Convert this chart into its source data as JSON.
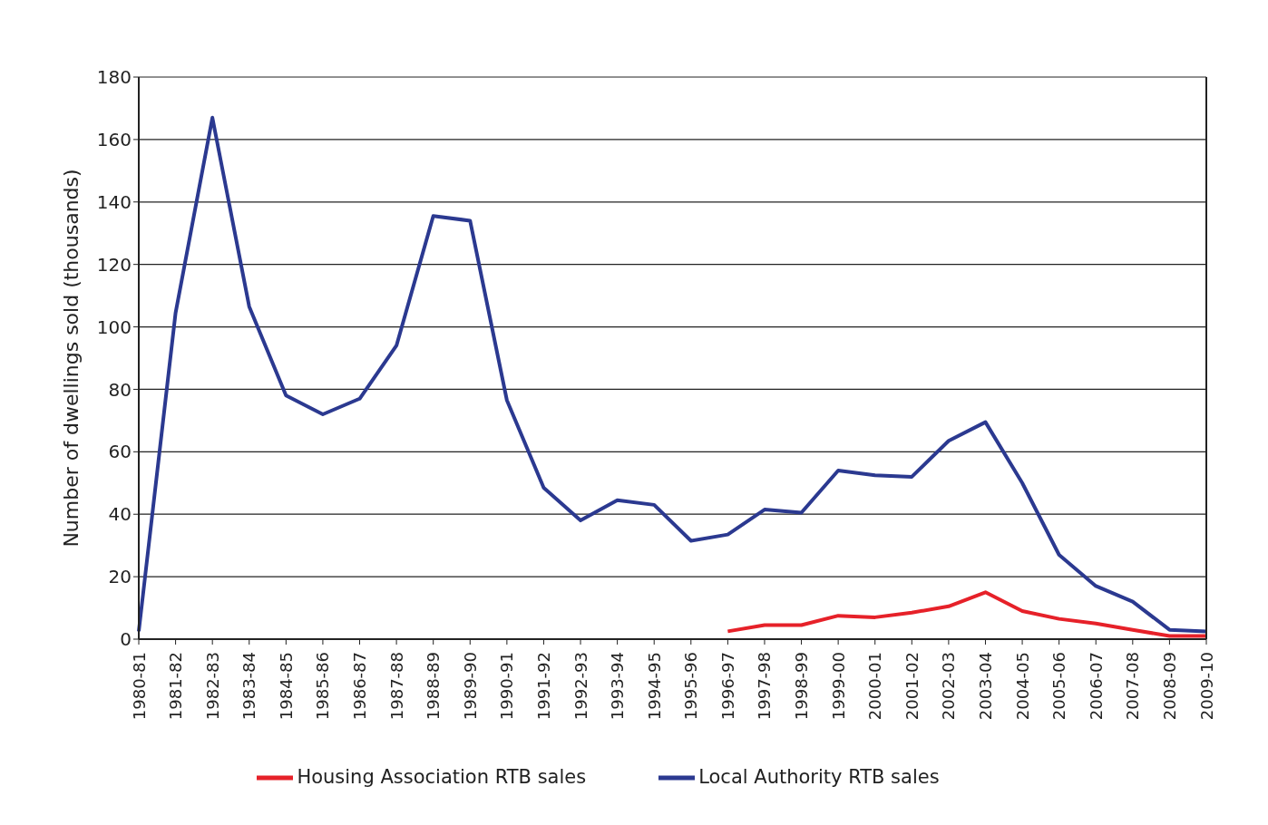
{
  "chart_data": {
    "type": "line",
    "ylabel": "Number of dwellings sold  (thousands)",
    "categories": [
      "1980-81",
      "1981-82",
      "1982-83",
      "1983-84",
      "1984-85",
      "1985-86",
      "1986-87",
      "1987-88",
      "1988-89",
      "1989-90",
      "1990-91",
      "1991-92",
      "1992-93",
      "1993-94",
      "1994-95",
      "1995-96",
      "1996-97",
      "1997-98",
      "1998-99",
      "1999-00",
      "2000-01",
      "2001-02",
      "2002-03",
      "2003-04",
      "2004-05",
      "2005-06",
      "2006-07",
      "2007-08",
      "2008-09",
      "2009-10"
    ],
    "series": [
      {
        "name": "Local Authority RTB sales",
        "color": "#2b3990",
        "values": [
          2.5,
          104.5,
          167,
          106.5,
          78,
          72,
          77,
          94,
          135.5,
          134,
          76.5,
          48.5,
          38,
          44.5,
          43,
          31.5,
          33.5,
          41.5,
          40.5,
          54,
          52.5,
          52,
          63.5,
          69.5,
          50,
          27,
          17,
          12,
          3,
          2.5
        ]
      },
      {
        "name": "Housing Association RTB sales",
        "color": "#e62129",
        "values": [
          null,
          null,
          null,
          null,
          null,
          null,
          null,
          null,
          null,
          null,
          null,
          null,
          null,
          null,
          null,
          null,
          2.5,
          4.5,
          4.5,
          7.5,
          7,
          8.5,
          10.5,
          15,
          9,
          6.5,
          5,
          3,
          1,
          1
        ]
      }
    ],
    "ylim": [
      0,
      180
    ],
    "yticks": [
      0,
      20,
      40,
      60,
      80,
      100,
      120,
      140,
      160,
      180
    ],
    "grid": "y",
    "legend": "bottom",
    "marker": "none",
    "line_style": "solid"
  }
}
